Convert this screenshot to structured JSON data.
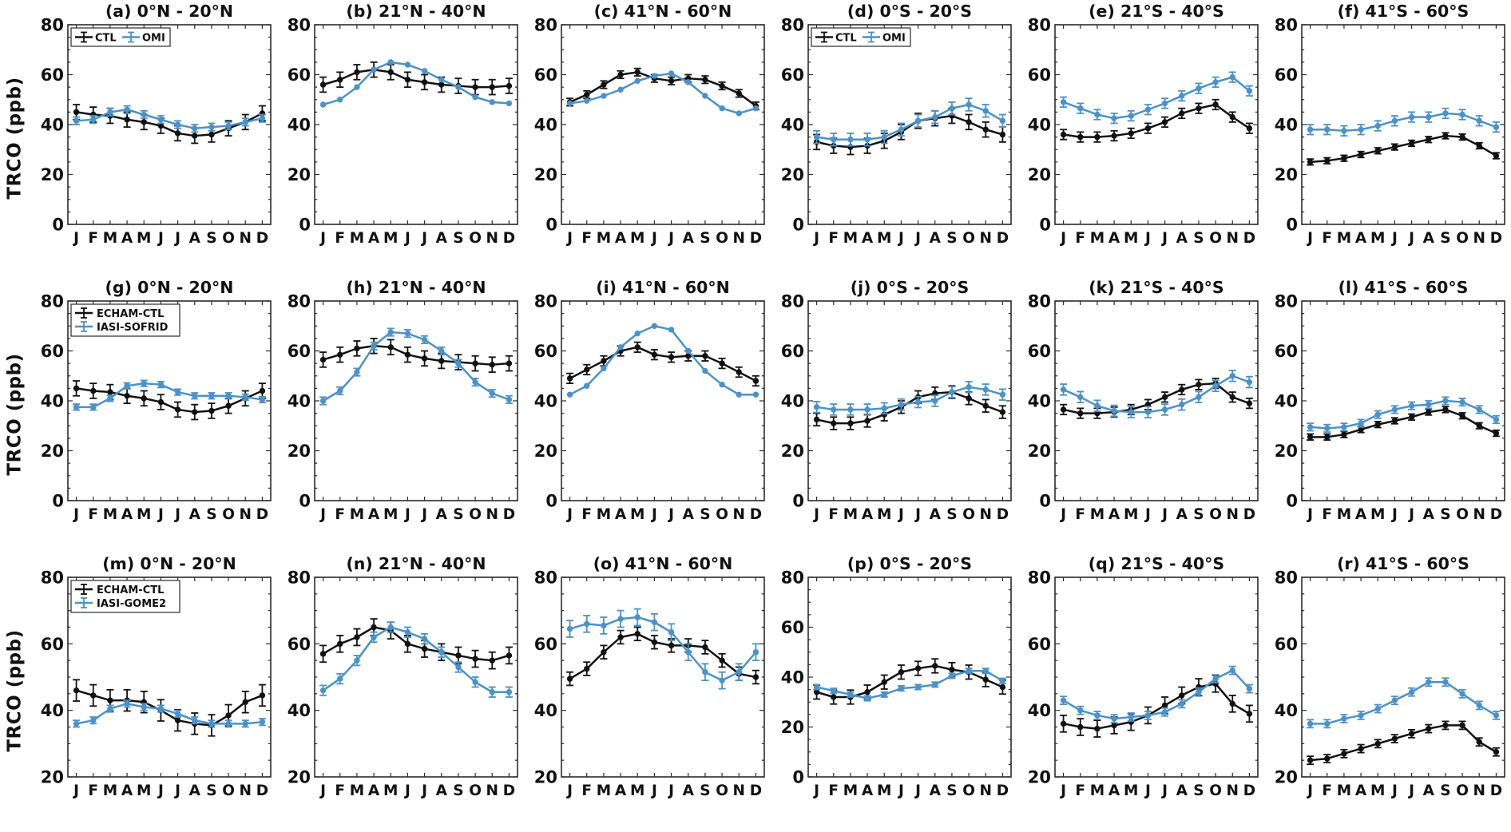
{
  "figure": {
    "ylabel": "TRCO (ppb)",
    "months": [
      "J",
      "F",
      "M",
      "A",
      "M",
      "J",
      "J",
      "A",
      "S",
      "O",
      "N",
      "D"
    ]
  },
  "colors": {
    "black": "#111111",
    "blue": "#4b92c9",
    "axis": "#2b2b2b",
    "legend_border": "#3a3a3a"
  },
  "chart_data": [
    {
      "id": "a",
      "row": 0,
      "type": "line",
      "title": "(a) 0°N - 20°N",
      "ylim": [
        0,
        80
      ],
      "yticks": [
        0,
        20,
        40,
        60,
        80
      ],
      "legend": {
        "layout": "horizontal",
        "labels": [
          "CTL",
          "OMI"
        ]
      },
      "series": [
        {
          "name": "CTL",
          "color": "black",
          "err": 3,
          "values": [
            45,
            44,
            43.5,
            42,
            41,
            39.5,
            36.5,
            35.5,
            36,
            38.5,
            41,
            44.5
          ]
        },
        {
          "name": "OMI",
          "color": "blue",
          "err": 1.5,
          "values": [
            41.5,
            42,
            45,
            46,
            44,
            42,
            40,
            38.5,
            39,
            39.5,
            41,
            42.5
          ]
        }
      ]
    },
    {
      "id": "b",
      "row": 0,
      "type": "line",
      "title": "(b) 21°N - 40°N",
      "ylim": [
        0,
        80
      ],
      "yticks": [
        0,
        20,
        40,
        60,
        80
      ],
      "legend": null,
      "series": [
        {
          "name": "CTL",
          "color": "black",
          "err": 3,
          "values": [
            56,
            58,
            61,
            62,
            61,
            58,
            57,
            56,
            55.5,
            55,
            55,
            55.5
          ]
        },
        {
          "name": "OMI",
          "color": "blue",
          "err": 0,
          "values": [
            48,
            50,
            55,
            62,
            65,
            64,
            61.5,
            58,
            55,
            51,
            49,
            48.5
          ]
        }
      ]
    },
    {
      "id": "c",
      "row": 0,
      "type": "line",
      "title": "(c) 41°N - 60°N",
      "ylim": [
        0,
        80
      ],
      "yticks": [
        0,
        20,
        40,
        60,
        80
      ],
      "legend": null,
      "series": [
        {
          "name": "CTL",
          "color": "black",
          "err": 1.5,
          "values": [
            49,
            52,
            56,
            60,
            61,
            58.5,
            57.5,
            58.5,
            58,
            55.5,
            52.5,
            47.5
          ]
        },
        {
          "name": "OMI",
          "color": "blue",
          "err": 0,
          "values": [
            48.5,
            49.5,
            51.5,
            54,
            57.5,
            59.5,
            60.5,
            57,
            51.5,
            46.5,
            44.5,
            46.5
          ]
        }
      ]
    },
    {
      "id": "d",
      "row": 0,
      "type": "line",
      "title": "(d) 0°S - 20°S",
      "ylim": [
        0,
        80
      ],
      "yticks": [
        0,
        20,
        40,
        60,
        80
      ],
      "legend": {
        "layout": "horizontal",
        "labels": [
          "CTL",
          "OMI"
        ]
      },
      "series": [
        {
          "name": "CTL",
          "color": "black",
          "err": 3,
          "values": [
            33,
            31.5,
            31,
            31.5,
            33.5,
            37,
            41.5,
            42.5,
            43.5,
            41,
            38,
            36
          ]
        },
        {
          "name": "OMI",
          "color": "blue",
          "err": 2.5,
          "values": [
            35,
            34,
            34,
            34,
            35,
            38,
            41.5,
            43,
            46.5,
            48,
            45.5,
            41.5
          ]
        }
      ]
    },
    {
      "id": "e",
      "row": 0,
      "type": "line",
      "title": "(e) 21°S - 40°S",
      "ylim": [
        0,
        80
      ],
      "yticks": [
        0,
        20,
        40,
        60,
        80
      ],
      "legend": null,
      "series": [
        {
          "name": "CTL",
          "color": "black",
          "err": 2,
          "values": [
            36,
            35,
            35,
            35.5,
            36.5,
            38.5,
            41,
            44.5,
            46.5,
            48,
            43,
            38.5
          ]
        },
        {
          "name": "OMI",
          "color": "blue",
          "err": 2,
          "values": [
            49,
            46.5,
            44,
            42.5,
            43.5,
            46,
            48.5,
            51.5,
            54.5,
            57,
            59,
            53.5
          ]
        }
      ]
    },
    {
      "id": "f",
      "row": 0,
      "type": "line",
      "title": "(f) 41°S - 60°S",
      "ylim": [
        0,
        80
      ],
      "yticks": [
        0,
        20,
        40,
        60,
        80
      ],
      "legend": null,
      "series": [
        {
          "name": "CTL",
          "color": "black",
          "err": 1.2,
          "values": [
            25,
            25.5,
            26.5,
            28,
            29.5,
            31,
            32.5,
            34,
            35.5,
            35,
            31.5,
            27.5
          ]
        },
        {
          "name": "OMI",
          "color": "blue",
          "err": 2,
          "values": [
            38,
            38,
            37.5,
            38,
            39.5,
            41.5,
            43,
            43,
            44.5,
            44,
            41.5,
            39
          ]
        }
      ]
    },
    {
      "id": "g",
      "row": 1,
      "type": "line",
      "title": "(g) 0°N - 20°N",
      "ylim": [
        0,
        80
      ],
      "yticks": [
        0,
        20,
        40,
        60,
        80
      ],
      "legend": {
        "layout": "vertical",
        "labels": [
          "ECHAM-CTL",
          "IASI-SOFRID"
        ]
      },
      "series": [
        {
          "name": "ECHAM-CTL",
          "color": "black",
          "err": 3,
          "values": [
            45,
            44,
            43.5,
            42,
            41,
            39.5,
            36.5,
            35.5,
            36,
            38,
            41,
            44
          ]
        },
        {
          "name": "IASI-SOFRID",
          "color": "blue",
          "err": 1.2,
          "values": [
            37.5,
            37.5,
            41,
            46,
            47,
            46.5,
            43.5,
            42,
            42,
            42,
            41.5,
            40.5
          ]
        }
      ]
    },
    {
      "id": "h",
      "row": 1,
      "type": "line",
      "title": "(h) 21°N - 40°N",
      "ylim": [
        0,
        80
      ],
      "yticks": [
        0,
        20,
        40,
        60,
        80
      ],
      "legend": null,
      "series": [
        {
          "name": "ECHAM-CTL",
          "color": "black",
          "err": 3,
          "values": [
            56.5,
            58.5,
            61,
            62,
            61.5,
            58.5,
            57,
            56,
            55.5,
            55,
            54.5,
            55
          ]
        },
        {
          "name": "IASI-SOFRID",
          "color": "blue",
          "err": 1.5,
          "values": [
            40,
            44,
            51.5,
            62,
            67.5,
            67,
            64.5,
            60,
            55,
            47.5,
            43,
            40.5
          ]
        }
      ]
    },
    {
      "id": "i",
      "row": 1,
      "type": "line",
      "title": "(i) 41°N - 60°N",
      "ylim": [
        0,
        80
      ],
      "yticks": [
        0,
        20,
        40,
        60,
        80
      ],
      "legend": null,
      "series": [
        {
          "name": "ECHAM-CTL",
          "color": "black",
          "err": 2,
          "values": [
            49,
            52.5,
            56,
            60,
            61.5,
            58.5,
            57.5,
            58,
            58,
            55,
            51.5,
            48
          ]
        },
        {
          "name": "IASI-SOFRID",
          "color": "blue",
          "err": 0,
          "values": [
            42.5,
            46,
            53,
            61.5,
            67,
            70,
            68.5,
            60,
            52,
            46.5,
            42.5,
            42.5
          ]
        }
      ]
    },
    {
      "id": "j",
      "row": 1,
      "type": "line",
      "title": "(j) 0°S - 20°S",
      "ylim": [
        0,
        80
      ],
      "yticks": [
        0,
        20,
        40,
        60,
        80
      ],
      "legend": null,
      "series": [
        {
          "name": "ECHAM-CTL",
          "color": "black",
          "err": 2.5,
          "values": [
            32.5,
            31,
            31,
            32,
            34.5,
            37.5,
            41.5,
            43,
            43.5,
            41,
            38,
            35.5
          ]
        },
        {
          "name": "IASI-SOFRID",
          "color": "blue",
          "err": 2.2,
          "values": [
            37.5,
            36.5,
            36.5,
            36.5,
            37,
            38.5,
            39.5,
            40,
            43.5,
            45.5,
            44.5,
            42.5
          ]
        }
      ]
    },
    {
      "id": "k",
      "row": 1,
      "type": "line",
      "title": "(k) 21°S - 40°S",
      "ylim": [
        0,
        80
      ],
      "yticks": [
        0,
        20,
        40,
        60,
        80
      ],
      "legend": null,
      "series": [
        {
          "name": "ECHAM-CTL",
          "color": "black",
          "err": 2,
          "values": [
            36.5,
            35,
            35,
            35.5,
            36.5,
            38.5,
            41.5,
            44.5,
            46.5,
            47,
            41.5,
            39
          ]
        },
        {
          "name": "IASI-SOFRID",
          "color": "blue",
          "err": 2.2,
          "values": [
            44.5,
            41.5,
            38,
            36,
            35.5,
            35.5,
            36.5,
            38.5,
            41.5,
            46,
            50,
            47.5
          ]
        }
      ]
    },
    {
      "id": "l",
      "row": 1,
      "type": "line",
      "title": "(l) 41°S - 60°S",
      "ylim": [
        0,
        80
      ],
      "yticks": [
        0,
        20,
        40,
        60,
        80
      ],
      "legend": null,
      "series": [
        {
          "name": "ECHAM-CTL",
          "color": "black",
          "err": 1.2,
          "values": [
            25.5,
            25.5,
            26.5,
            28.5,
            30.5,
            32,
            33.5,
            35.5,
            36.5,
            34,
            30,
            27
          ]
        },
        {
          "name": "IASI-SOFRID",
          "color": "blue",
          "err": 1.5,
          "values": [
            29.5,
            29,
            29.5,
            31,
            34.5,
            36.5,
            38,
            38.5,
            40,
            39.5,
            36.5,
            32.5
          ]
        }
      ]
    },
    {
      "id": "m",
      "row": 2,
      "type": "line",
      "title": "(m) 0°N - 20°N",
      "ylim": [
        20,
        80
      ],
      "yticks": [
        20,
        40,
        60,
        80
      ],
      "legend": {
        "layout": "vertical",
        "labels": [
          "ECHAM-CTL",
          "IASI-GOME2"
        ]
      },
      "series": [
        {
          "name": "ECHAM-CTL",
          "color": "black",
          "err": 3.2,
          "values": [
            46,
            44.5,
            43,
            43,
            42.5,
            40,
            37,
            36,
            35.5,
            38.5,
            42.5,
            44.5
          ]
        },
        {
          "name": "IASI-GOME2",
          "color": "blue",
          "err": 1,
          "values": [
            36,
            37,
            40.5,
            42,
            41,
            40.5,
            39,
            37,
            36,
            36,
            36,
            36.5
          ]
        }
      ]
    },
    {
      "id": "n",
      "row": 2,
      "type": "line",
      "title": "(n) 21°N - 40°N",
      "ylim": [
        20,
        80
      ],
      "yticks": [
        20,
        40,
        60,
        80
      ],
      "legend": null,
      "series": [
        {
          "name": "ECHAM-CTL",
          "color": "black",
          "err": 2.5,
          "values": [
            57,
            60,
            62,
            65,
            64,
            60,
            58.5,
            57.5,
            56.5,
            55.5,
            55,
            56.5
          ]
        },
        {
          "name": "IASI-GOME2",
          "color": "blue",
          "err": 1.5,
          "values": [
            46,
            49.5,
            55,
            62,
            65,
            63.5,
            61.5,
            57.5,
            53,
            48.5,
            45.5,
            45.5
          ]
        }
      ]
    },
    {
      "id": "o",
      "row": 2,
      "type": "line",
      "title": "(o) 41°N - 60°N",
      "ylim": [
        20,
        80
      ],
      "yticks": [
        20,
        40,
        60,
        80
      ],
      "legend": null,
      "series": [
        {
          "name": "ECHAM-CTL",
          "color": "black",
          "err": 2,
          "values": [
            49.5,
            52.5,
            57.5,
            62,
            63,
            60.5,
            59.5,
            59.5,
            59,
            55,
            51,
            50
          ]
        },
        {
          "name": "IASI-GOME2",
          "color": "blue",
          "err": 2.5,
          "values": [
            64.5,
            66,
            65.5,
            67.5,
            68,
            66.5,
            63.5,
            57.5,
            51.5,
            49,
            51.5,
            57.5
          ]
        }
      ]
    },
    {
      "id": "p",
      "row": 2,
      "type": "line",
      "title": "(p) 0°S - 20°S",
      "ylim": [
        0,
        80
      ],
      "yticks": [
        0,
        20,
        40,
        60,
        80
      ],
      "legend": null,
      "series": [
        {
          "name": "ECHAM-CTL",
          "color": "black",
          "err": 2.8,
          "values": [
            34,
            32,
            32,
            34,
            38,
            42,
            43.5,
            44.5,
            43,
            42,
            39,
            36
          ]
        },
        {
          "name": "IASI-GOME2",
          "color": "blue",
          "err": 1,
          "values": [
            36,
            34.5,
            33,
            31.5,
            33,
            35.5,
            36,
            37,
            40.5,
            42.5,
            42.5,
            38.5
          ]
        }
      ]
    },
    {
      "id": "q",
      "row": 2,
      "type": "line",
      "title": "(q) 21°S - 40°S",
      "ylim": [
        20,
        80
      ],
      "yticks": [
        20,
        40,
        60,
        80
      ],
      "legend": null,
      "series": [
        {
          "name": "ECHAM-CTL",
          "color": "black",
          "err": 2.5,
          "values": [
            36,
            35,
            34.5,
            35.5,
            36.5,
            38.5,
            41.5,
            44.5,
            47,
            48,
            42,
            39
          ]
        },
        {
          "name": "IASI-GOME2",
          "color": "blue",
          "err": 1.2,
          "values": [
            43,
            40,
            38.5,
            37.5,
            38,
            38.5,
            39.5,
            42,
            45.5,
            49.5,
            52,
            46.5
          ]
        }
      ]
    },
    {
      "id": "r",
      "row": 2,
      "type": "line",
      "title": "(r) 41°S - 60°S",
      "ylim": [
        20,
        80
      ],
      "yticks": [
        20,
        40,
        60,
        80
      ],
      "legend": null,
      "series": [
        {
          "name": "ECHAM-CTL",
          "color": "black",
          "err": 1.2,
          "values": [
            25,
            25.5,
            27,
            28.5,
            30,
            31.5,
            33,
            34.5,
            35.5,
            35.5,
            30.5,
            27.5
          ]
        },
        {
          "name": "IASI-GOME2",
          "color": "blue",
          "err": 1.2,
          "values": [
            36,
            36,
            37.5,
            38.5,
            40.5,
            43,
            45.5,
            48.5,
            48.5,
            45,
            41.5,
            38.5
          ]
        }
      ]
    }
  ]
}
